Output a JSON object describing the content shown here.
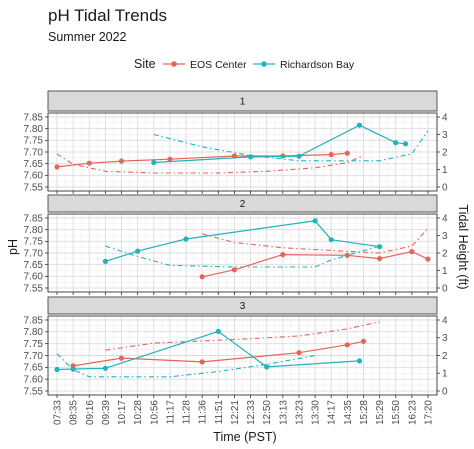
{
  "chart_data": {
    "type": "line",
    "title": "pH Tidal Trends",
    "subtitle": "Summer 2022",
    "xlabel": "Time (PST)",
    "ylabel": "pH",
    "y2label": "Tidal Height (ft)",
    "legend": {
      "title": "Site",
      "position": "top",
      "items": [
        {
          "name": "EOS Center",
          "color": "#e8635a"
        },
        {
          "name": "Richardson Bay",
          "color": "#1fb3bd"
        }
      ]
    },
    "grid": true,
    "x_ticks": [
      "07:33",
      "08:35",
      "09:16",
      "09:39",
      "10:17",
      "10:28",
      "10:56",
      "11:17",
      "11:28",
      "11:36",
      "11:51",
      "12:21",
      "12:33",
      "12:50",
      "13:13",
      "13:23",
      "13:30",
      "14:17",
      "14:35",
      "15:28",
      "15:29",
      "15:50",
      "16:23",
      "17:20"
    ],
    "y_ticks": [
      "7.55",
      "7.60",
      "7.65",
      "7.70",
      "7.75",
      "7.80",
      "7.85"
    ],
    "ylim": [
      7.55,
      7.85
    ],
    "y2_ticks": [
      "0",
      "1",
      "2",
      "3",
      "4"
    ],
    "y2lim": [
      0,
      4
    ],
    "panels": [
      {
        "label": "1",
        "series": [
          {
            "name": "EOS Center",
            "x": [
              "07:33",
              "09:16",
              "10:17",
              "11:17",
              "12:21",
              "13:13",
              "14:17",
              "14:35"
            ],
            "y": [
              7.636,
              7.652,
              7.661,
              7.669,
              7.683,
              7.683,
              7.689,
              7.695
            ]
          },
          {
            "name": "Richardson Bay",
            "x": [
              "10:56",
              "12:33",
              "13:23",
              "15:15",
              "15:50",
              "16:10"
            ],
            "y": [
              7.655,
              7.679,
              7.682,
              7.815,
              7.74,
              7.735
            ]
          }
        ],
        "tide": [
          {
            "name": "EOS Center",
            "x": [
              "07:33",
              "08:35",
              "09:39",
              "10:56",
              "11:51",
              "12:50",
              "13:30",
              "14:35",
              "15:28"
            ],
            "y": [
              1.9,
              1.3,
              0.9,
              0.8,
              0.8,
              0.9,
              1.1,
              1.4,
              1.8
            ]
          },
          {
            "name": "Richardson Bay",
            "x": [
              "10:56",
              "11:36",
              "12:33",
              "13:23",
              "14:17",
              "15:29",
              "16:23",
              "17:20"
            ],
            "y": [
              3.0,
              2.3,
              1.8,
              1.5,
              1.5,
              1.5,
              1.9,
              3.2
            ]
          }
        ]
      },
      {
        "label": "2",
        "series": [
          {
            "name": "EOS Center",
            "x": [
              "11:36",
              "12:21",
              "13:13",
              "14:35",
              "15:29",
              "16:23",
              "17:20"
            ],
            "y": [
              7.598,
              7.628,
              7.693,
              7.69,
              7.676,
              7.706,
              7.674
            ]
          },
          {
            "name": "Richardson Bay",
            "x": [
              "09:39",
              "10:28",
              "11:28",
              "13:30",
              "14:17",
              "15:29"
            ],
            "y": [
              7.664,
              7.708,
              7.76,
              7.838,
              7.757,
              7.727
            ]
          }
        ],
        "tide": [
          {
            "name": "EOS Center",
            "x": [
              "11:36",
              "12:21",
              "13:13",
              "14:35",
              "15:29",
              "16:23",
              "17:20"
            ],
            "y": [
              3.1,
              2.6,
              2.3,
              2.1,
              2.0,
              2.4,
              3.4
            ]
          },
          {
            "name": "Richardson Bay",
            "x": [
              "09:39",
              "10:28",
              "11:17",
              "12:21",
              "13:30",
              "14:17",
              "15:29"
            ],
            "y": [
              2.4,
              1.8,
              1.3,
              1.2,
              1.2,
              1.6,
              2.4
            ]
          }
        ]
      },
      {
        "label": "3",
        "series": [
          {
            "name": "EOS Center",
            "x": [
              "08:35",
              "10:17",
              "11:36",
              "13:23",
              "14:35",
              "15:28"
            ],
            "y": [
              7.656,
              7.689,
              7.673,
              7.712,
              7.745,
              7.76
            ]
          },
          {
            "name": "Richardson Bay",
            "x": [
              "07:33",
              "08:35",
              "09:39",
              "11:51",
              "12:50",
              "15:15"
            ],
            "y": [
              7.641,
              7.643,
              7.646,
              7.802,
              7.652,
              7.677
            ]
          }
        ],
        "tide": [
          {
            "name": "EOS Center",
            "x": [
              "09:39",
              "10:56",
              "12:21",
              "13:23",
              "14:35",
              "15:29"
            ],
            "y": [
              2.3,
              2.7,
              2.9,
              3.1,
              3.5,
              3.9
            ]
          },
          {
            "name": "Richardson Bay",
            "x": [
              "07:33",
              "08:35",
              "09:16",
              "10:17",
              "11:17",
              "11:51",
              "12:50",
              "13:30"
            ],
            "y": [
              2.1,
              1.2,
              0.8,
              0.8,
              0.8,
              1.1,
              1.5,
              2.0
            ]
          }
        ]
      }
    ]
  }
}
